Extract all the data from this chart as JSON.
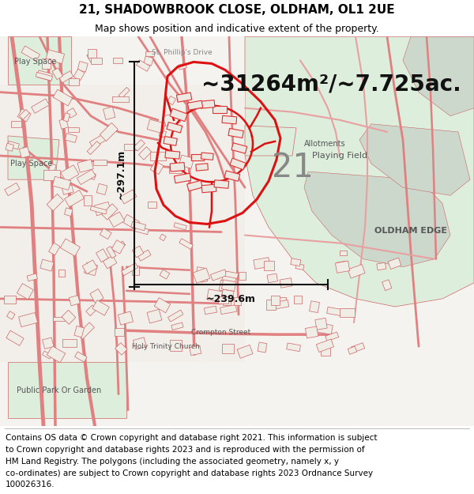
{
  "title_line1": "21, SHADOWBROOK CLOSE, OLDHAM, OL1 2UE",
  "title_line2": "Map shows position and indicative extent of the property.",
  "area_text": "~31264m²/~7.725ac.",
  "label_number": "21",
  "label_playing_field": "Playing Field",
  "label_allotments": "Allotments",
  "label_oldham_edge": "OLDHAM EDGE",
  "label_play_space_tl": "Play Space",
  "label_play_space_ml": "Play Space",
  "label_public_park": "Public Park Or Garden",
  "label_holy_trinity": "Holy Trinity Church",
  "label_crompton": "Crompton Street",
  "label_st_phillip": "St. Phillip's Drive",
  "dim_width": "~239.6m",
  "dim_height": "~297.1m",
  "footer_lines": [
    "Contains OS data © Crown copyright and database right 2021. This information is subject",
    "to Crown copyright and database rights 2023 and is reproduced with the permission of",
    "HM Land Registry. The polygons (including the associated geometry, namely x, y",
    "co-ordinates) are subject to Crown copyright and database rights 2023 Ordnance Survey",
    "100026316."
  ],
  "map_bg": "#f5f3f0",
  "green_fill": "#ddeedd",
  "green_fill2": "#ccdccc",
  "urban_bg": "#f0eeea",
  "road_color": "#e88880",
  "road_color2": "#dd7070",
  "property_fill": "none",
  "property_outline": "#dd1111",
  "building_fill": "#eeebe6",
  "building_outline": "#cc4444",
  "dim_line_color": "#111111",
  "title_fontsize": 11,
  "subtitle_fontsize": 9,
  "area_fontsize": 20,
  "footer_fontsize": 7.5,
  "label_color": "#888888",
  "label_color_dark": "#555555"
}
